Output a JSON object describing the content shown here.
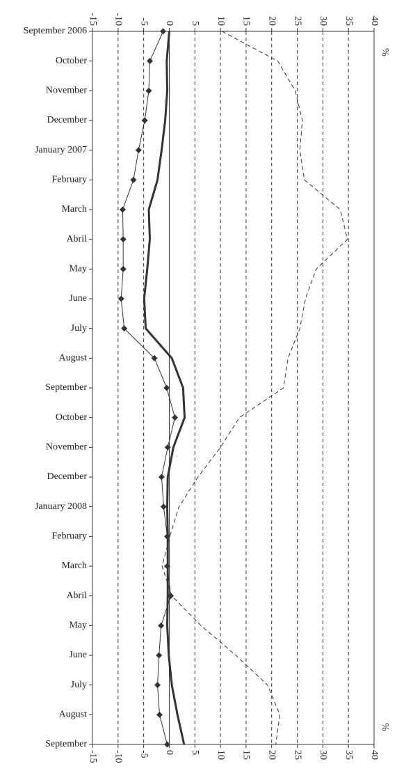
{
  "chart_data": {
    "type": "line",
    "orientation": "horizontal",
    "categories": [
      "September 2006",
      "October",
      "November",
      "December",
      "January 2007",
      "February",
      "March",
      "Abril",
      "May",
      "June",
      "July",
      "August",
      "September",
      "October",
      "November",
      "December",
      "January 2008",
      "February",
      "March",
      "Abril",
      "May",
      "June",
      "July",
      "August",
      "September"
    ],
    "xlim": [
      -15,
      40
    ],
    "xticks": [
      -15,
      -10,
      -5,
      0,
      5,
      10,
      15,
      20,
      25,
      30,
      35,
      40
    ],
    "grid": true,
    "annotations": [
      "%",
      "%"
    ],
    "series": [
      {
        "color": "#333333",
        "style": "thin-diamond",
        "values": [
          -1.2,
          -3.8,
          -4,
          -4.8,
          -6,
          -7,
          -9.1,
          -9,
          -9,
          -9.4,
          -8.8,
          -2.9,
          -0.5,
          1.1,
          -0.3,
          -1.5,
          -1.1,
          -0.4,
          -0.4,
          0.3,
          -1.6,
          -2,
          -2.3,
          -1.9,
          -0.4
        ]
      },
      {
        "color": "#333333",
        "style": "thick",
        "values": [
          0,
          -0.5,
          -0.4,
          -0.8,
          -1.5,
          -2.3,
          -4,
          -3.8,
          -4.3,
          -4.9,
          -4.6,
          0.5,
          2.7,
          3,
          0.8,
          -0.3,
          -0.4,
          -0.3,
          -0.3,
          -0.3,
          -0.4,
          -0.1,
          0.5,
          1.6,
          2.9
        ]
      },
      {
        "color": "#333333",
        "style": "dashed",
        "values": [
          10.3,
          21.2,
          24.6,
          26,
          25.5,
          26.4,
          33.4,
          34.8,
          28.7,
          26.6,
          25.5,
          23.2,
          22.3,
          13.7,
          10,
          5.6,
          1.9,
          0.1,
          -1.4,
          0.5,
          6.2,
          13,
          19.2,
          21.6,
          20.8
        ]
      }
    ]
  }
}
